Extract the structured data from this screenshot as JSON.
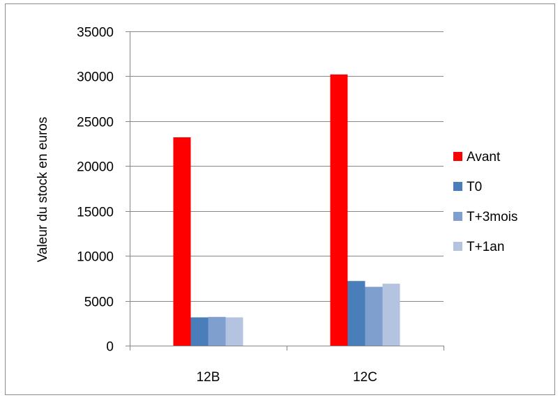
{
  "chart_data": {
    "type": "bar",
    "title": "",
    "xlabel": "",
    "ylabel": "Valeur du stock en euros",
    "categories": [
      "12B",
      "12C"
    ],
    "series": [
      {
        "name": "Avant",
        "color": "#ff0000",
        "values": [
          23200,
          30200
        ]
      },
      {
        "name": "T0",
        "color": "#4a7ebb",
        "values": [
          3150,
          7200
        ]
      },
      {
        "name": "T+3mois",
        "color": "#7f9fcf",
        "values": [
          3200,
          6550
        ]
      },
      {
        "name": "T+1an",
        "color": "#b3c3e0",
        "values": [
          3150,
          6900
        ]
      }
    ],
    "ylim": [
      0,
      35000
    ],
    "yticks": [
      0,
      5000,
      10000,
      15000,
      20000,
      25000,
      30000,
      35000
    ],
    "grid": true,
    "legend": "right"
  }
}
